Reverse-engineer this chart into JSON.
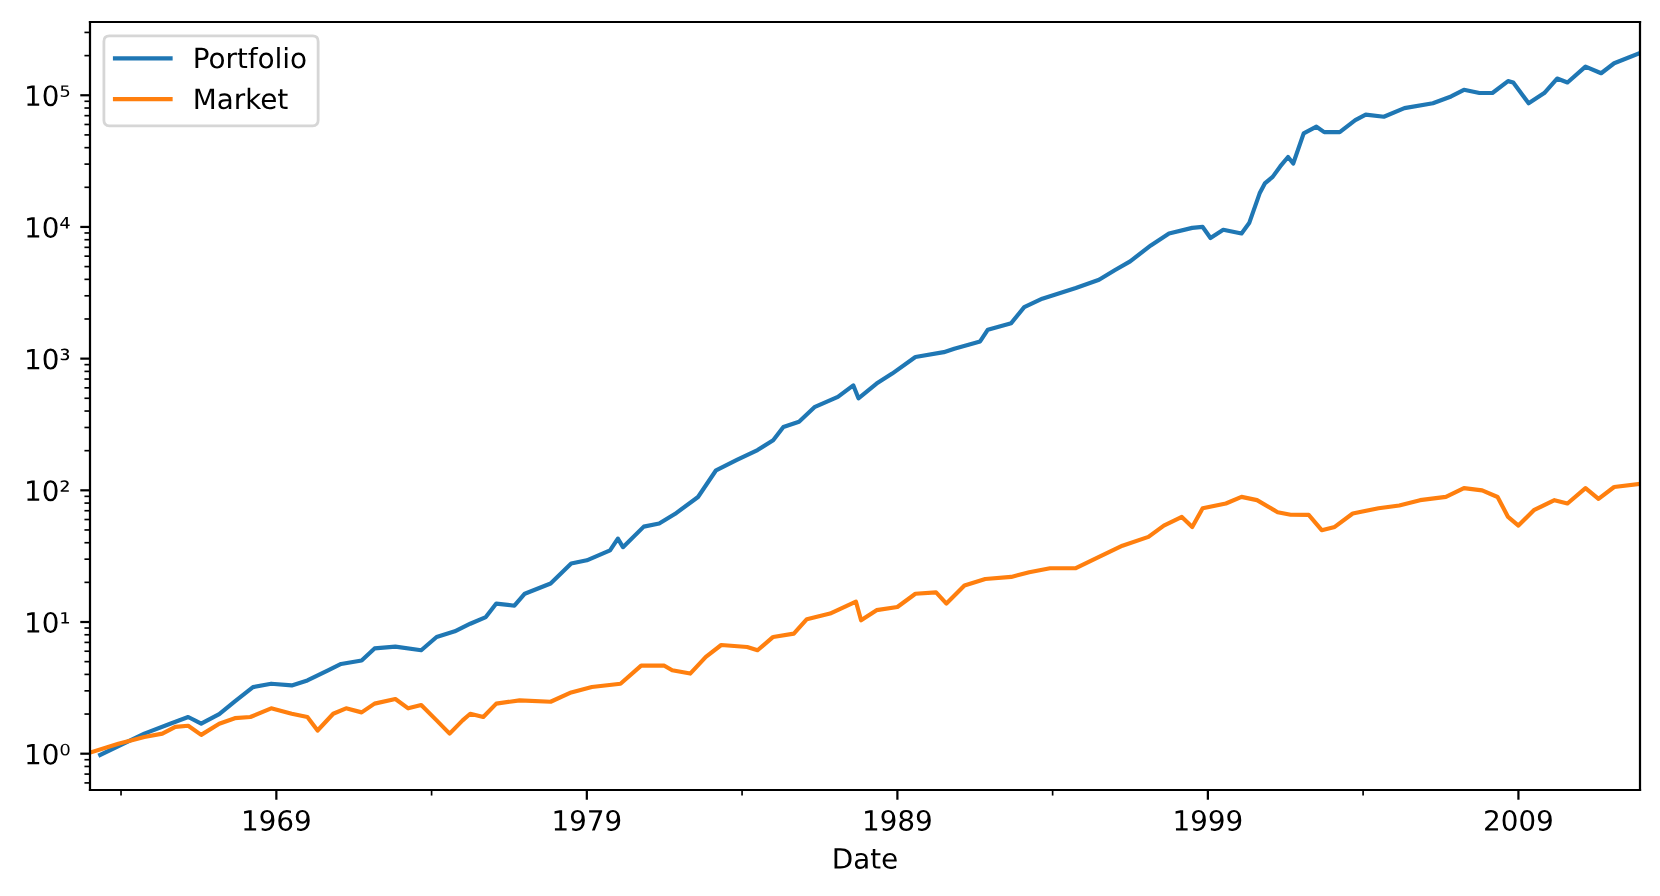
{
  "chart_data": {
    "type": "line",
    "xlabel": "Date",
    "log": "y",
    "legend": "top left",
    "grid": false,
    "xlim": [
      "1963-01",
      "2012-12"
    ],
    "ylim": [
      0.53,
      360000
    ],
    "xticks": [
      {
        "value": "1964-01",
        "label": null
      },
      {
        "value": "1969-01",
        "label": "1969"
      },
      {
        "value": "1974-01",
        "label": null
      },
      {
        "value": "1979-01",
        "label": "1979"
      },
      {
        "value": "1984-01",
        "label": null
      },
      {
        "value": "1989-01",
        "label": "1989"
      },
      {
        "value": "1994-01",
        "label": null
      },
      {
        "value": "1999-01",
        "label": "1999"
      },
      {
        "value": "2004-01",
        "label": null
      },
      {
        "value": "2009-01",
        "label": "2009"
      }
    ],
    "yticks": [
      {
        "value": 1,
        "label": "10⁰"
      },
      {
        "value": 10,
        "label": "10¹"
      },
      {
        "value": 100,
        "label": "10²"
      },
      {
        "value": 1000,
        "label": "10³"
      },
      {
        "value": 10000,
        "label": "10⁴"
      },
      {
        "value": 100000,
        "label": "10⁵"
      }
    ],
    "series": [
      {
        "name": "Portfolio",
        "color": "#1f77b4",
        "x": [
          "1963-05",
          "1964-10",
          "1965-08",
          "1966-03",
          "1966-08",
          "1967-03",
          "1967-09",
          "1968-04",
          "1968-11",
          "1969-07",
          "1970-01",
          "1970-09",
          "1971-02",
          "1971-10",
          "1972-03",
          "1972-11",
          "1973-09",
          "1974-03",
          "1974-10",
          "1975-04",
          "1975-10",
          "1976-02",
          "1976-09",
          "1977-01",
          "1977-11",
          "1978-07",
          "1979-01",
          "1979-10",
          "1980-01",
          "1980-03",
          "1980-11",
          "1981-05",
          "1981-11",
          "1982-08",
          "1983-03",
          "1983-11",
          "1984-07",
          "1985-01",
          "1985-05",
          "1985-11",
          "1986-05",
          "1987-02",
          "1987-08",
          "1987-10",
          "1988-05",
          "1988-11",
          "1989-08",
          "1990-07",
          "1990-11",
          "1991-09",
          "1991-12",
          "1992-09",
          "1993-02",
          "1993-09",
          "1994-10",
          "1995-07",
          "1996-01",
          "1996-07",
          "1997-03",
          "1997-10",
          "1998-07",
          "1998-11",
          "1999-02",
          "1999-07",
          "2000-02",
          "2000-05",
          "2000-09",
          "2000-11",
          "2001-02",
          "2001-05",
          "2001-08",
          "2001-10",
          "2002-02",
          "2002-07",
          "2002-10",
          "2003-04",
          "2003-10",
          "2004-02",
          "2004-09",
          "2005-05",
          "2006-04",
          "2006-11",
          "2007-04",
          "2007-10",
          "2008-03",
          "2008-09",
          "2008-11",
          "2009-05",
          "2009-11",
          "2010-04",
          "2010-08",
          "2011-03",
          "2011-09",
          "2012-02",
          "2012-12"
        ],
        "values": [
          0.98,
          1.42,
          1.69,
          1.9,
          1.69,
          2.0,
          2.5,
          3.2,
          3.4,
          3.3,
          3.6,
          4.3,
          4.8,
          5.1,
          6.3,
          6.5,
          6.1,
          7.7,
          8.5,
          9.7,
          10.9,
          13.8,
          13.3,
          16.4,
          19.6,
          27.8,
          29.4,
          35,
          43,
          37,
          53,
          56,
          66,
          89,
          142,
          170,
          202,
          240,
          303,
          332,
          428,
          513,
          627,
          500,
          646,
          770,
          1030,
          1120,
          1190,
          1350,
          1660,
          1860,
          2460,
          2850,
          3440,
          3970,
          4690,
          5480,
          7240,
          8920,
          9840,
          10000,
          8250,
          9520,
          8920,
          10700,
          18000,
          21400,
          24000,
          28800,
          34000,
          30300,
          51300,
          57700,
          52500,
          52500,
          64700,
          71200,
          68700,
          79800,
          87000,
          97900,
          110000,
          104000,
          104000,
          128000,
          125000,
          87000,
          104000,
          134000,
          125000,
          165000,
          147000,
          175000,
          209000
        ]
      },
      {
        "name": "Market",
        "color": "#ff7f0e",
        "x": [
          "1963-01",
          "1963-12",
          "1964-10",
          "1965-05",
          "1965-10",
          "1966-03",
          "1966-08",
          "1967-03",
          "1967-09",
          "1968-03",
          "1968-11",
          "1969-07",
          "1970-01",
          "1970-05",
          "1970-11",
          "1971-04",
          "1971-10",
          "1972-03",
          "1972-11",
          "1973-04",
          "1973-09",
          "1974-03",
          "1974-08",
          "1975-01",
          "1975-04",
          "1975-09",
          "1976-02",
          "1976-11",
          "1977-11",
          "1978-07",
          "1979-03",
          "1980-02",
          "1980-10",
          "1981-07",
          "1981-10",
          "1982-05",
          "1982-11",
          "1983-05",
          "1984-03",
          "1984-07",
          "1985-01",
          "1985-09",
          "1986-02",
          "1986-11",
          "1987-09",
          "1987-11",
          "1988-05",
          "1989-01",
          "1989-08",
          "1990-04",
          "1990-08",
          "1991-03",
          "1991-11",
          "1992-09",
          "1993-04",
          "1993-12",
          "1994-10",
          "1995-07",
          "1996-04",
          "1997-02",
          "1997-08",
          "1998-03",
          "1998-07",
          "1998-11",
          "1999-08",
          "2000-02",
          "2000-08",
          "2001-04",
          "2001-09",
          "2002-04",
          "2002-09",
          "2003-02",
          "2003-09",
          "2004-07",
          "2005-03",
          "2005-11",
          "2006-09",
          "2007-04",
          "2007-11",
          "2008-05",
          "2008-09",
          "2009-01",
          "2009-07",
          "2010-03",
          "2010-08",
          "2011-03",
          "2011-08",
          "2012-02",
          "2012-12"
        ],
        "values": [
          1.02,
          1.19,
          1.34,
          1.42,
          1.6,
          1.63,
          1.39,
          1.69,
          1.86,
          1.9,
          2.21,
          2.01,
          1.9,
          1.5,
          2.01,
          2.21,
          2.06,
          2.4,
          2.6,
          2.21,
          2.34,
          1.79,
          1.42,
          1.79,
          2.01,
          1.9,
          2.4,
          2.54,
          2.48,
          2.92,
          3.21,
          3.4,
          4.66,
          4.66,
          4.3,
          4.06,
          5.43,
          6.69,
          6.46,
          6.1,
          7.7,
          8.16,
          10.5,
          11.6,
          14.3,
          10.3,
          12.3,
          13.0,
          16.4,
          16.8,
          13.8,
          18.9,
          21.2,
          22.0,
          23.9,
          25.6,
          25.6,
          31.2,
          38,
          44.3,
          54,
          62.8,
          52.7,
          73.1,
          79.4,
          89.2,
          84.2,
          68.2,
          65.2,
          65,
          49.8,
          52.7,
          66.7,
          73.1,
          76.7,
          84.2,
          89.2,
          104,
          100,
          89,
          62.8,
          54,
          70.6,
          84.2,
          79.4,
          104,
          86.1,
          106,
          112
        ]
      }
    ]
  }
}
